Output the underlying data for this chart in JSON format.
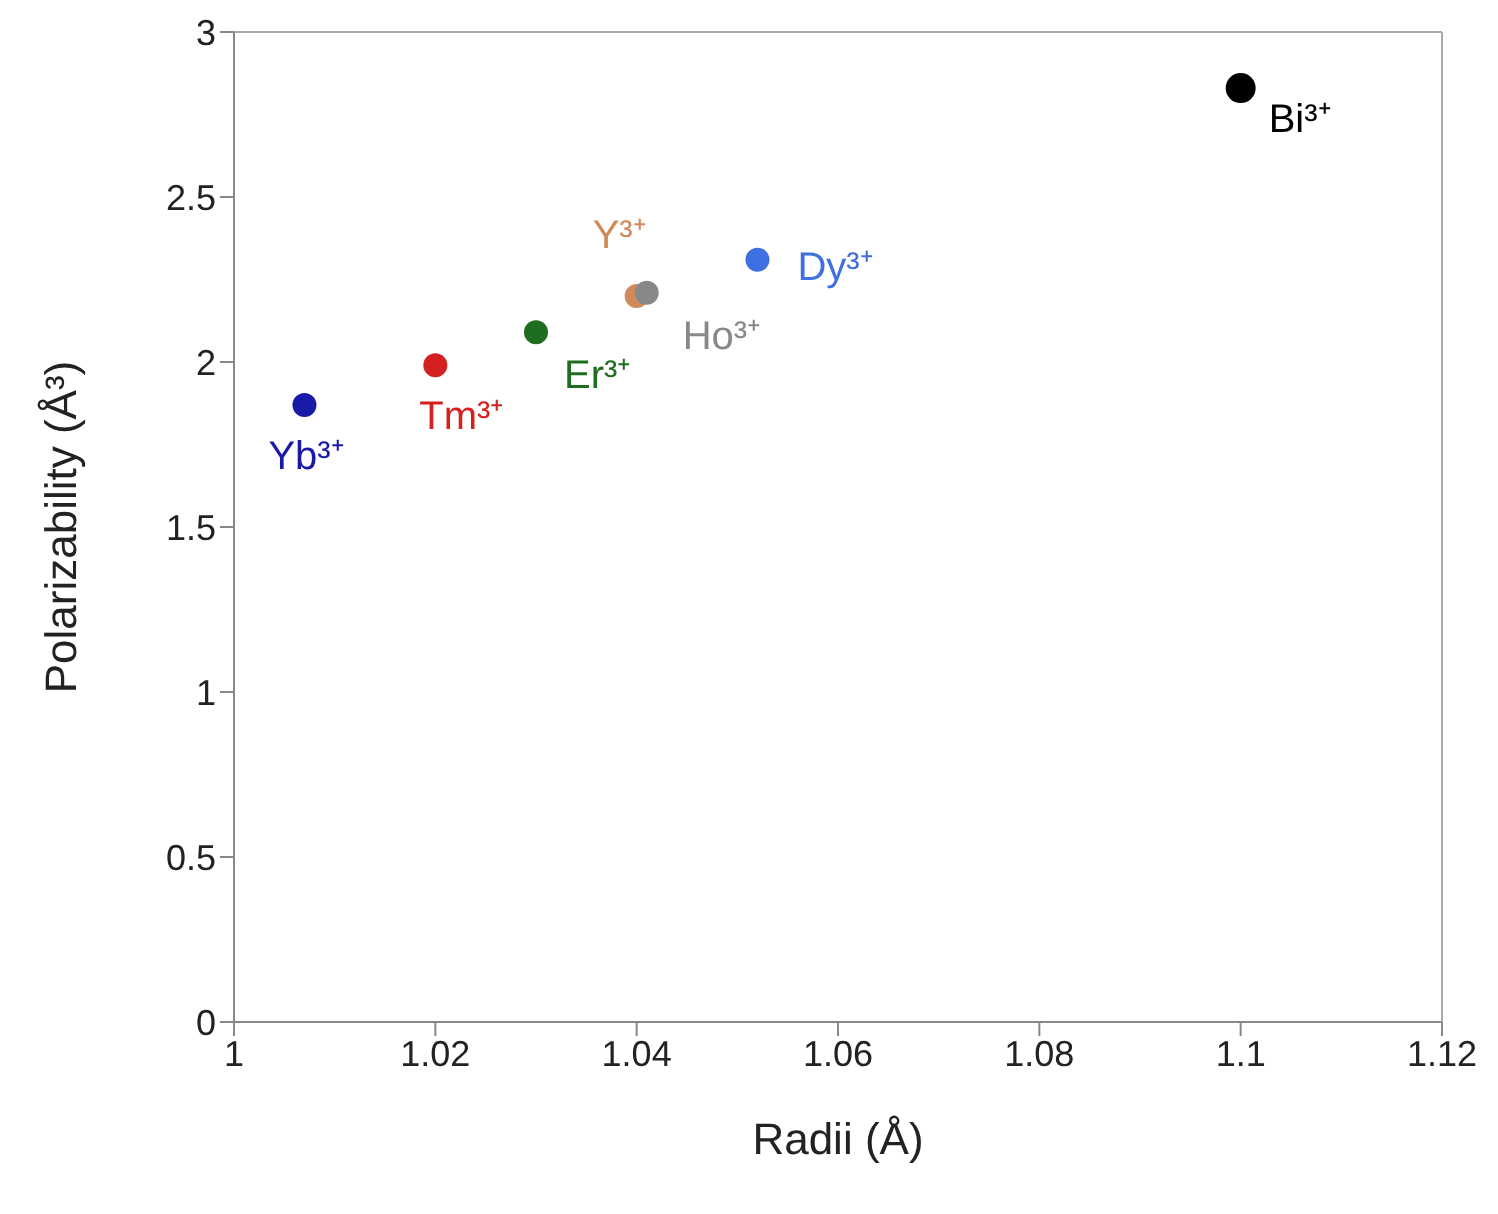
{
  "chart_data": {
    "type": "scatter",
    "xlabel": "Radii (Å)",
    "ylabel": "Polarizability (Å³)",
    "xlim": [
      1,
      1.12
    ],
    "xticks": [
      1,
      1.02,
      1.04,
      1.06,
      1.08,
      1.1,
      1.12
    ],
    "ylim": [
      0,
      3
    ],
    "yticks": [
      0,
      0.5,
      1,
      1.5,
      2,
      2.5,
      3
    ],
    "marker": "circle",
    "series": [
      {
        "name": "Yb³⁺",
        "color": "#1a1aa8",
        "x": [
          1.007
        ],
        "values": [
          1.87
        ]
      },
      {
        "name": "Tm³⁺",
        "color": "#d42020",
        "x": [
          1.02
        ],
        "values": [
          1.99
        ]
      },
      {
        "name": "Er³⁺",
        "color": "#1f6e1f",
        "x": [
          1.03
        ],
        "values": [
          2.09
        ]
      },
      {
        "name": "Y³⁺",
        "color": "#d08a5a",
        "x": [
          1.04
        ],
        "values": [
          2.2
        ]
      },
      {
        "name": "Ho³⁺",
        "color": "#888888",
        "x": [
          1.041
        ],
        "values": [
          2.21
        ]
      },
      {
        "name": "Dy³⁺",
        "color": "#3f6fe0",
        "x": [
          1.052
        ],
        "values": [
          2.31
        ]
      },
      {
        "name": "Bi³⁺",
        "color": "#000000",
        "x": [
          1.1
        ],
        "values": [
          2.83
        ]
      }
    ]
  }
}
